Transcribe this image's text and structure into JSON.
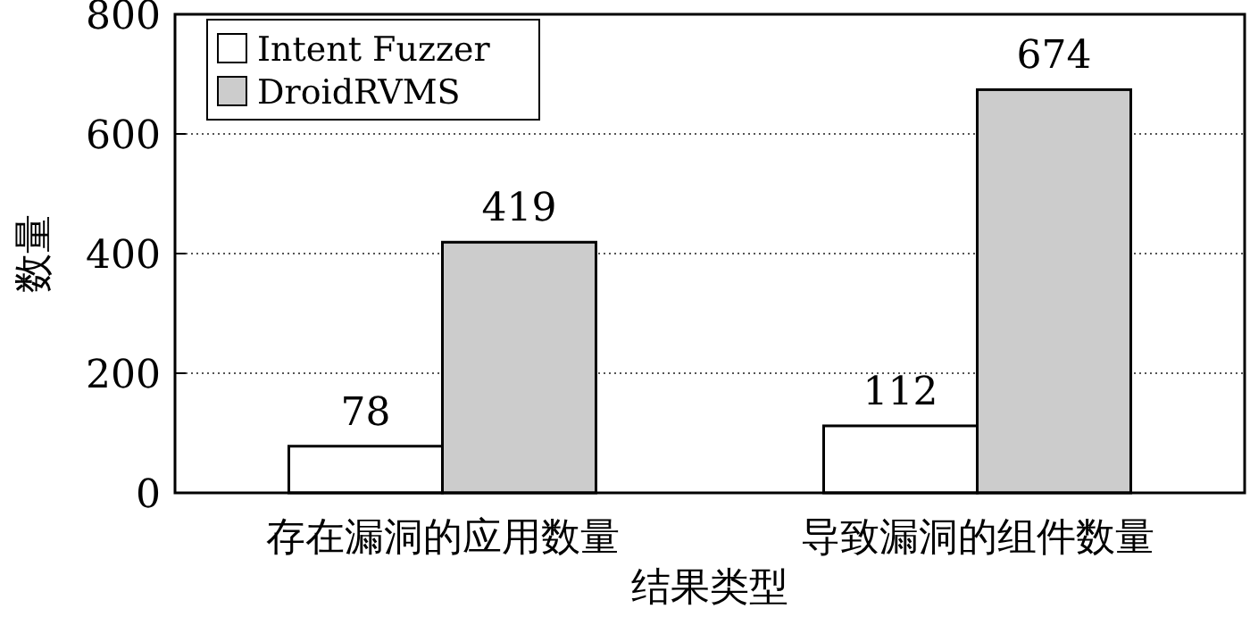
{
  "chart_data": {
    "type": "bar",
    "xlabel": "结果类型",
    "ylabel": "数量",
    "categories": [
      "存在漏洞的应用数量",
      "导致漏洞的组件数量"
    ],
    "series": [
      {
        "name": "Intent Fuzzer",
        "color": "#ffffff",
        "values": [
          78,
          112
        ]
      },
      {
        "name": "DroidRVMS",
        "color": "#cccccc",
        "values": [
          419,
          674
        ]
      }
    ],
    "ylim": [
      0,
      800
    ],
    "yticks": [
      0,
      200,
      400,
      600,
      800
    ],
    "grid": "y",
    "legend": "top left",
    "data_labels": true
  }
}
